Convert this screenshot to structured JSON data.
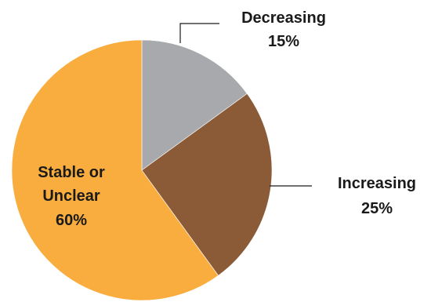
{
  "chart_data": {
    "type": "pie",
    "title": "",
    "slices": [
      {
        "label": "Decreasing",
        "value": 15,
        "value_label": "15%",
        "color": "#a7a9ac"
      },
      {
        "label": "Increasing",
        "value": 25,
        "value_label": "25%",
        "color": "#8b5a36"
      },
      {
        "label": "Stable or Unclear",
        "label_lines": [
          "Stable or",
          "Unclear"
        ],
        "value": 60,
        "value_label": "60%",
        "color": "#f9ad3f"
      }
    ],
    "start_angle": "12 o'clock",
    "direction": "clockwise",
    "legend": "none (labels placed next to slices)"
  }
}
